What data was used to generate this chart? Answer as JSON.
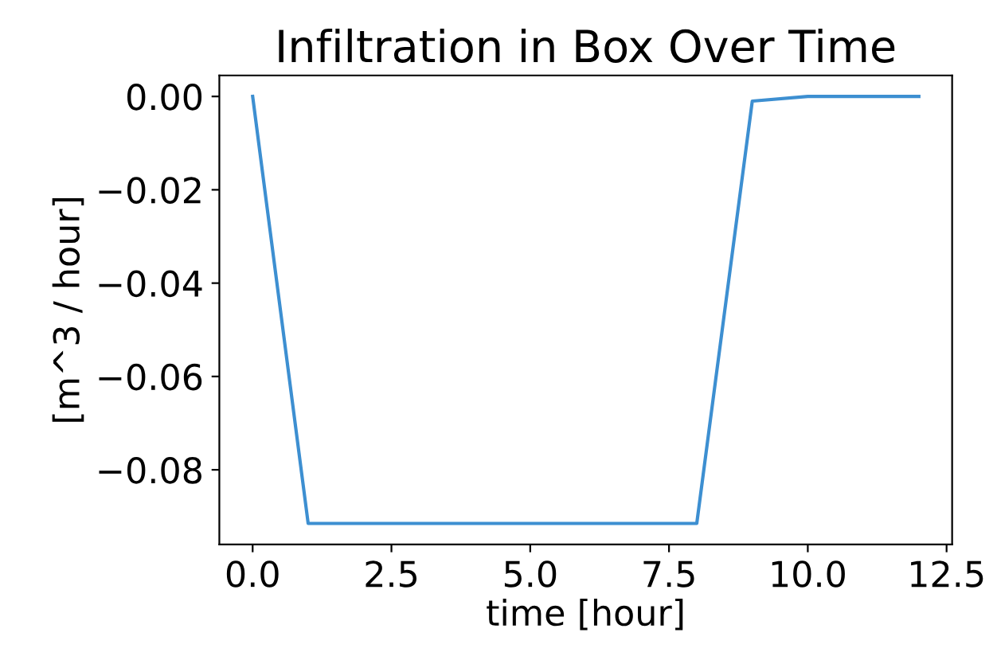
{
  "chart_data": {
    "type": "line",
    "title": "Infiltration in Box Over Time",
    "xlabel": "time [hour]",
    "ylabel": "[m^3 / hour]",
    "x": [
      0,
      1,
      2,
      3,
      4,
      5,
      6,
      7,
      8,
      9,
      10,
      11,
      12
    ],
    "series": [
      {
        "color": "#3d8fd1",
        "values": [
          0,
          -0.0915,
          -0.0915,
          -0.0915,
          -0.0915,
          -0.0915,
          -0.0915,
          -0.0915,
          -0.0915,
          -0.001,
          0,
          0,
          0
        ]
      }
    ],
    "xlim": [
      -0.6,
      12.6
    ],
    "ylim": [
      -0.096,
      0.0045
    ],
    "xticks": [
      {
        "value": 0,
        "label": "0.0"
      },
      {
        "value": 2.5,
        "label": "2.5"
      },
      {
        "value": 5,
        "label": "5.0"
      },
      {
        "value": 7.5,
        "label": "7.5"
      },
      {
        "value": 10,
        "label": "10.0"
      },
      {
        "value": 12.5,
        "label": "12.5"
      }
    ],
    "yticks": [
      {
        "value": 0,
        "label": "0.00"
      },
      {
        "value": -0.02,
        "label": "−0.02"
      },
      {
        "value": -0.04,
        "label": "−0.04"
      },
      {
        "value": -0.06,
        "label": "−0.06"
      },
      {
        "value": -0.08,
        "label": "−0.08"
      }
    ],
    "grid": false,
    "legend": false,
    "marker": "none",
    "line_style": "solid"
  }
}
